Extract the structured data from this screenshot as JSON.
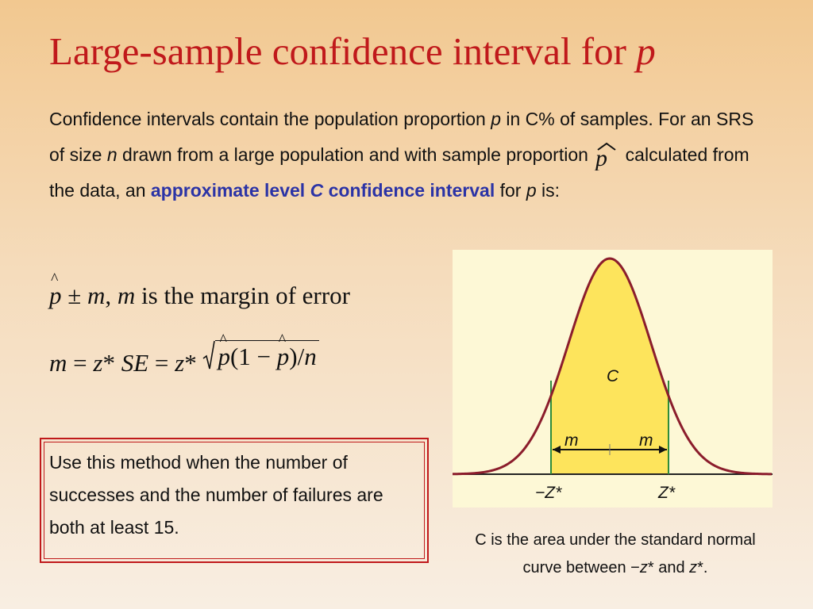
{
  "slide": {
    "title_text": "Large-sample confidence interval for ",
    "title_var": "p"
  },
  "intro": {
    "part1": "Confidence intervals contain the population proportion ",
    "var_p1": "p",
    "part2": " in C% of samples. For an SRS of size ",
    "var_n": "n",
    "part3": " drawn from a large population and with sample proportion ",
    "part4": " calculated from the data, an ",
    "highlight1": "approximate level ",
    "highlight_var": "C",
    "highlight2": " confidence interval",
    "part5": " for ",
    "var_p2": "p",
    "part6": " is:"
  },
  "formulas": {
    "f1_p": "p",
    "f1_pm": " ± ",
    "f1_m": "m",
    "f1_comma": ",  ",
    "f1_m2": "m",
    "f1_rest": " is the margin of error",
    "f2_m": "m",
    "f2_eq1": " = ",
    "f2_z1": "z",
    "f2_star1": "* ",
    "f2_se": "SE",
    "f2_eq2": " = ",
    "f2_z2": "z",
    "f2_star2": "* ",
    "f2_p1": "p",
    "f2_open": "(1 − ",
    "f2_p2": "p",
    "f2_close": ")/",
    "f2_n": "n"
  },
  "note": {
    "text": "Use this method when the number of successes and the number of failures are both at least 15."
  },
  "figure": {
    "label_c": "C",
    "label_m_left": "m",
    "label_m_right": "m",
    "label_neg_z": "−Z*",
    "label_pos_z": "Z*",
    "colors": {
      "curve": "#8b1d2c",
      "fill": "#fde45c",
      "boundary": "#2e8b3a",
      "background": "#fdf8d6"
    }
  },
  "caption": {
    "part1": "C is the area under the standard normal curve between −",
    "var1": "z",
    "part2": "* and ",
    "var2": "z",
    "part3": "*."
  },
  "colors": {
    "title": "#c0191b",
    "highlight": "#2b33a6",
    "box_border": "#c0191b"
  }
}
